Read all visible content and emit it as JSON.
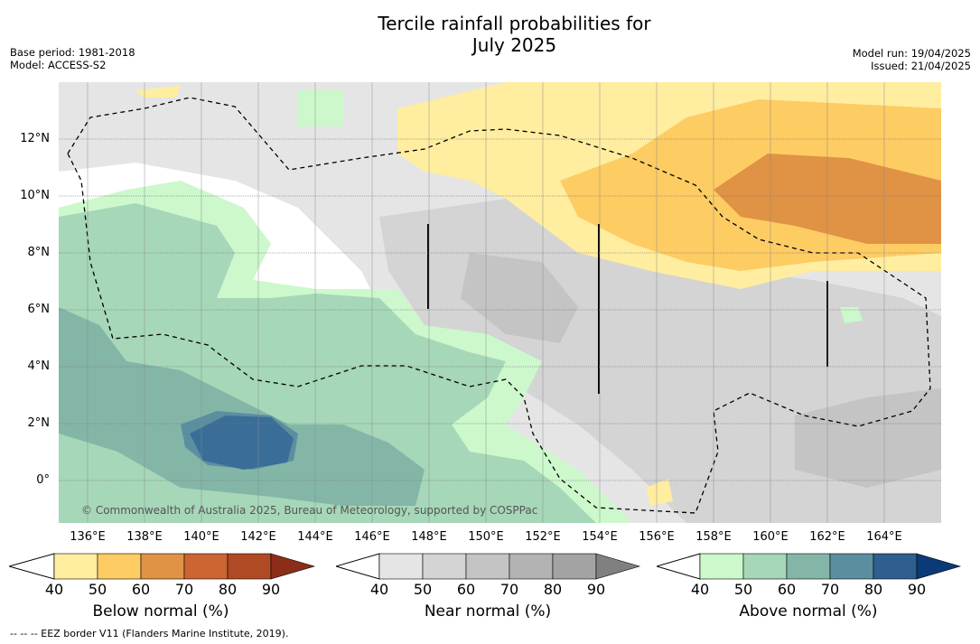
{
  "title": {
    "line1": "Tercile rainfall probabilities for",
    "line2": "July 2025"
  },
  "base_period": "Base period: 1981-2018",
  "model": "Model: ACCESS-S2",
  "model_run": "Model run: 19/04/2025",
  "issued": "Issued: 21/04/2025",
  "lat_labels": [
    "12°N",
    "10°N",
    "8°N",
    "6°N",
    "4°N",
    "2°N",
    "0°"
  ],
  "lon_labels": [
    "136°E",
    "138°E",
    "140°E",
    "142°E",
    "144°E",
    "146°E",
    "148°E",
    "150°E",
    "152°E",
    "154°E",
    "156°E",
    "158°E",
    "160°E",
    "162°E",
    "164°E"
  ],
  "copyright": "© Commonwealth of Australia 2025, Bureau of Meteorology, supported by COSPPac",
  "colorbars": [
    {
      "title": "Below normal (%)",
      "ticks": [
        "40",
        "50",
        "60",
        "70",
        "80",
        "90"
      ],
      "colors": [
        "#ffeda0",
        "#fdcc63",
        "#e09245",
        "#cc6533",
        "#b04a25",
        "#8c2d1a"
      ]
    },
    {
      "title": "Near normal (%)",
      "ticks": [
        "40",
        "50",
        "60",
        "70",
        "80",
        "90"
      ],
      "colors": [
        "#e5e5e5",
        "#d4d4d4",
        "#c4c4c4",
        "#b3b3b3",
        "#a3a3a3",
        "#808080"
      ]
    },
    {
      "title": "Above normal (%)",
      "ticks": [
        "40",
        "50",
        "60",
        "70",
        "80",
        "90"
      ],
      "colors": [
        "#ccf8cc",
        "#a6d7b8",
        "#84b6a8",
        "#5b8fa0",
        "#2f5f8f",
        "#0b3a78"
      ]
    }
  ],
  "footer": "--  --  -- EEZ border V11 (Flanders Marine Institute, 2019)."
}
